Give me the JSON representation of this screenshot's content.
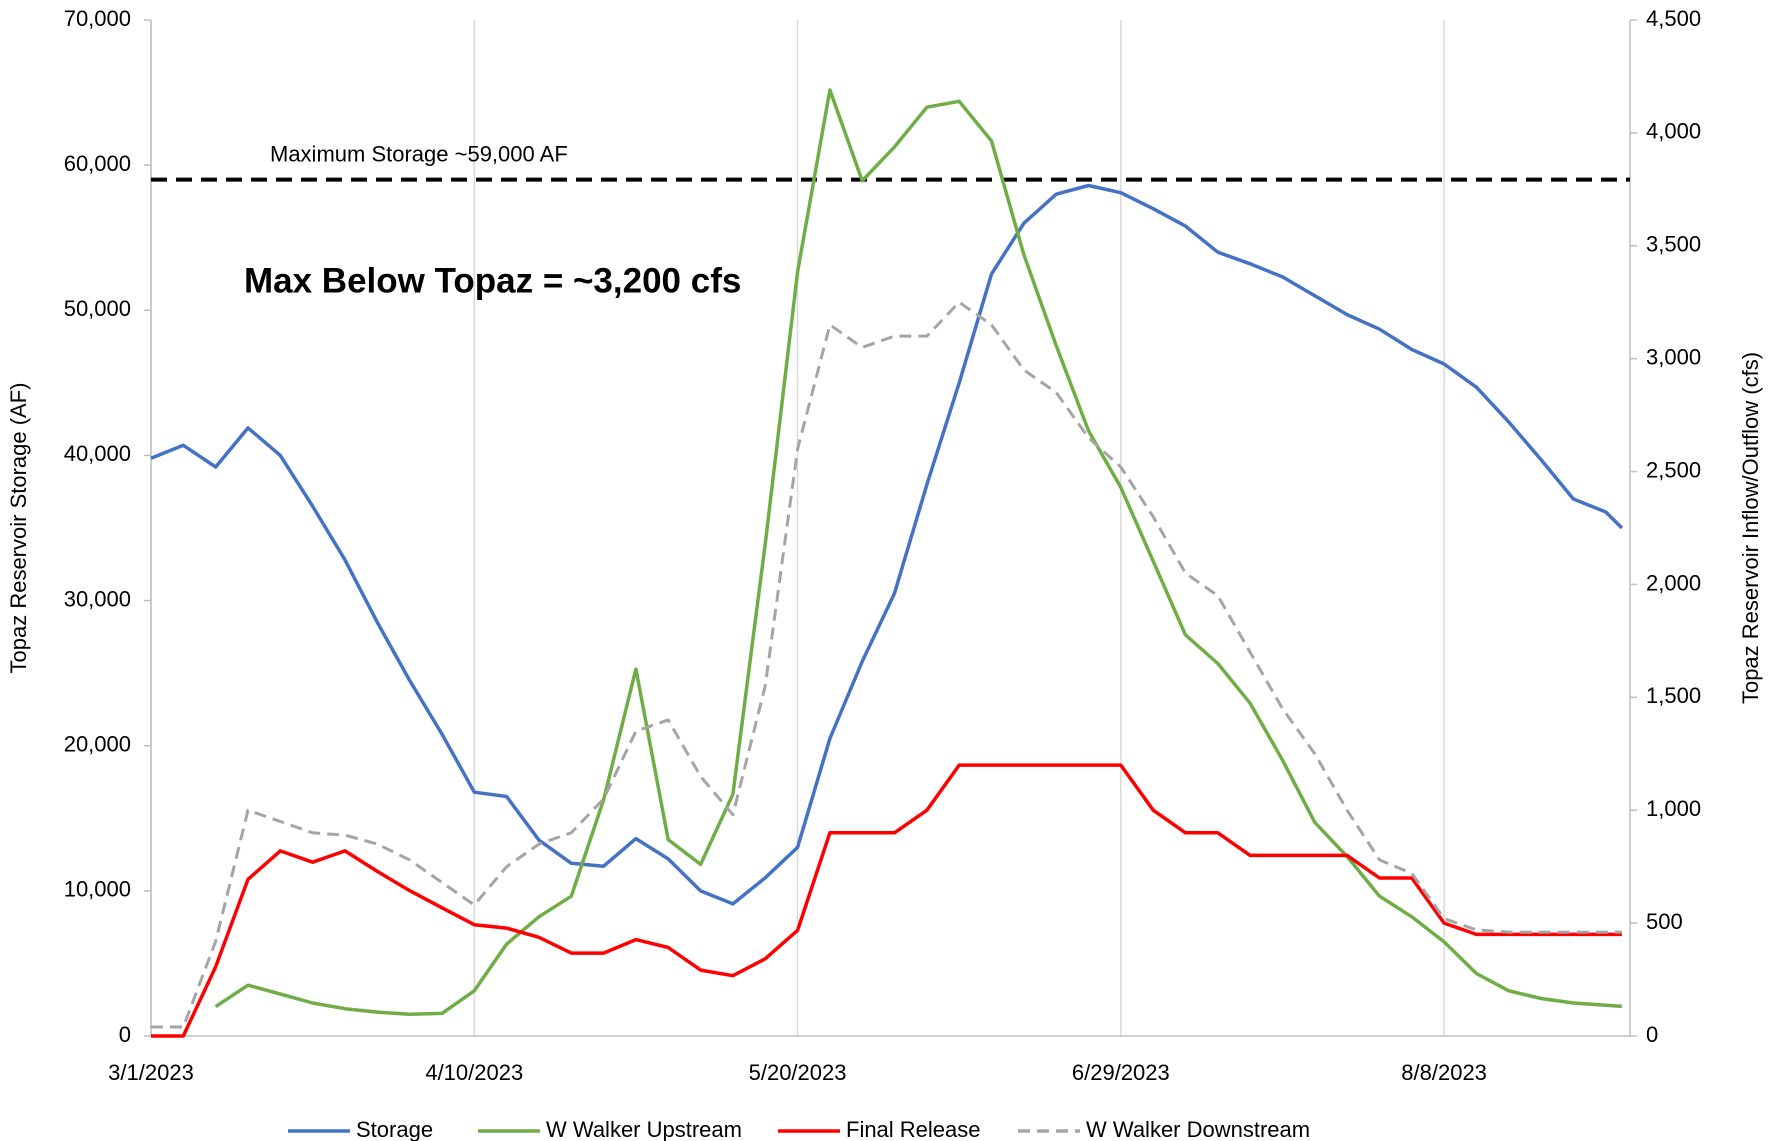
{
  "chart_data": {
    "type": "line",
    "x": [
      "2023-03-01",
      "2023-03-05",
      "2023-03-09",
      "2023-03-13",
      "2023-03-17",
      "2023-03-21",
      "2023-03-25",
      "2023-03-29",
      "2023-04-02",
      "2023-04-06",
      "2023-04-10",
      "2023-04-14",
      "2023-04-18",
      "2023-04-22",
      "2023-04-26",
      "2023-04-30",
      "2023-05-04",
      "2023-05-08",
      "2023-05-12",
      "2023-05-16",
      "2023-05-20",
      "2023-05-24",
      "2023-05-28",
      "2023-06-01",
      "2023-06-05",
      "2023-06-09",
      "2023-06-13",
      "2023-06-17",
      "2023-06-21",
      "2023-06-25",
      "2023-06-29",
      "2023-07-03",
      "2023-07-07",
      "2023-07-11",
      "2023-07-15",
      "2023-07-19",
      "2023-07-23",
      "2023-07-27",
      "2023-07-31",
      "2023-08-04",
      "2023-08-08",
      "2023-08-12",
      "2023-08-16",
      "2023-08-20",
      "2023-08-24",
      "2023-08-28",
      "2023-08-30"
    ],
    "xlim": [
      "2023-03-01",
      "2023-08-31"
    ],
    "xticks": [
      {
        "value": "2023-03-01",
        "label": "3/1/2023"
      },
      {
        "value": "2023-04-10",
        "label": "4/10/2023"
      },
      {
        "value": "2023-05-20",
        "label": "5/20/2023"
      },
      {
        "value": "2023-06-29",
        "label": "6/29/2023"
      },
      {
        "value": "2023-08-08",
        "label": "8/8/2023"
      }
    ],
    "grid": "x",
    "ylabel": "Topaz Reservoir Storage (AF)",
    "y2label": "Topaz Reservoir Inflow/Outflow (cfs)",
    "ylim": [
      0,
      70000
    ],
    "yticks": [
      0,
      {
        "value": 10000,
        "label": "10,000"
      },
      {
        "value": 20000,
        "label": "20,000"
      },
      {
        "value": 30000,
        "label": "30,000"
      },
      {
        "value": 40000,
        "label": "40,000"
      },
      {
        "value": 50000,
        "label": "50,000"
      },
      {
        "value": 60000,
        "label": "60,000"
      },
      {
        "value": 70000,
        "label": "70,000"
      }
    ],
    "y2lim": [
      0,
      4500
    ],
    "y2ticks": [
      0,
      500,
      {
        "value": 1000,
        "label": "1,000"
      },
      {
        "value": 1500,
        "label": "1,500"
      },
      {
        "value": 2000,
        "label": "2,000"
      },
      {
        "value": 2500,
        "label": "2,500"
      },
      {
        "value": 3000,
        "label": "3,000"
      },
      {
        "value": 3500,
        "label": "3,500"
      },
      {
        "value": 4000,
        "label": "4,000"
      },
      {
        "value": 4500,
        "label": "4,500"
      }
    ],
    "legend": "bottom",
    "series": [
      {
        "name": "Storage",
        "color": "#4472c4",
        "values": [
          39800,
          40700,
          39200,
          41900,
          40000,
          36500,
          32800,
          28500,
          24500,
          20800,
          16800,
          16500,
          13500,
          11900,
          11700,
          13600,
          12200,
          10000,
          9100,
          10900,
          13000,
          20500,
          25800,
          30500,
          38000,
          45000,
          52500,
          56000,
          58000,
          58600,
          58100,
          57000,
          55800,
          54000,
          53200,
          52300,
          51000,
          49700,
          48700,
          47300,
          46300,
          44700,
          42300,
          39700,
          37000,
          36100,
          35000
        ]
      },
      {
        "name": "W Walker Upstream",
        "color": "#70ad47",
        "axis": "y2",
        "values": [
          null,
          null,
          130,
          225,
          186,
          146,
          121,
          106,
          96,
          100,
          200,
          407,
          528,
          619,
          1046,
          1625,
          870,
          760,
          1071,
          2178,
          3385,
          4190,
          3788,
          3938,
          4114,
          4140,
          3964,
          3460,
          3058,
          2681,
          2430,
          2103,
          1776,
          1650,
          1474,
          1222,
          946,
          795,
          619,
          528,
          417,
          277,
          200,
          166,
          146,
          136,
          131
        ]
      },
      {
        "name": "Final Release",
        "color": "#ff0000",
        "axis": "y2",
        "values": [
          0,
          0,
          307,
          694,
          820,
          770,
          820,
          729,
          644,
          568,
          493,
          478,
          437,
          367,
          367,
          427,
          392,
          292,
          267,
          342,
          468,
          900,
          900,
          900,
          1000,
          1200,
          1200,
          1200,
          1200,
          1200,
          1200,
          1000,
          900,
          900,
          800,
          800,
          800,
          800,
          700,
          700,
          500,
          450,
          450,
          450,
          450,
          450,
          450
        ]
      },
      {
        "name": "W Walker Downstream",
        "color": "#a5a5a5",
        "axis": "y2",
        "dash": true,
        "values": [
          40,
          40,
          420,
          1000,
          950,
          900,
          890,
          850,
          780,
          680,
          580,
          750,
          850,
          900,
          1050,
          1350,
          1400,
          1150,
          980,
          1550,
          2600,
          3150,
          3050,
          3100,
          3100,
          3250,
          3150,
          2950,
          2850,
          2650,
          2520,
          2300,
          2050,
          1950,
          1700,
          1450,
          1250,
          1000,
          780,
          720,
          520,
          470,
          460,
          460,
          460,
          460,
          460
        ]
      }
    ],
    "annotations": [
      {
        "text": "Maximum Storage ~59,000 AF",
        "y": 59000
      },
      {
        "text": "Max Below Topaz = ~3,200 cfs"
      }
    ]
  }
}
